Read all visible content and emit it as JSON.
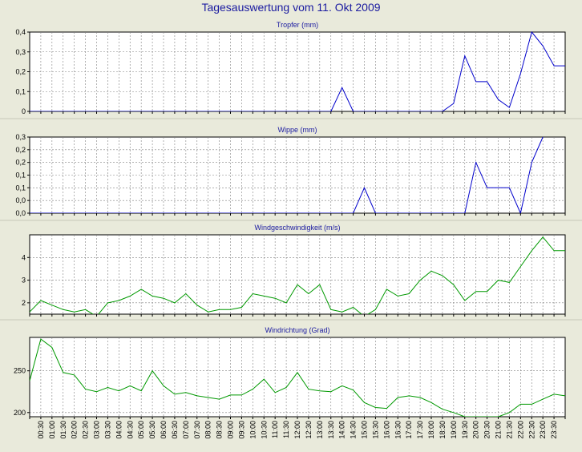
{
  "title": "Tagesauswertung vom 11. Okt 2009",
  "colors": {
    "background": "#e9eadb",
    "blue_series": "#0000cc",
    "green_series": "#009900",
    "grid": "#808080",
    "title_text": "#1a1aa0"
  },
  "x_tick_labels": [
    "00:30",
    "01:00",
    "01:30",
    "02:00",
    "02:30",
    "03:00",
    "03:30",
    "04:00",
    "04:30",
    "05:00",
    "05:30",
    "06:00",
    "06:30",
    "07:00",
    "07:30",
    "08:00",
    "08:30",
    "09:00",
    "09:30",
    "10:00",
    "10:30",
    "11:00",
    "11:30",
    "12:00",
    "12:30",
    "13:00",
    "13:30",
    "14:00",
    "14:30",
    "15:00",
    "15:30",
    "16:00",
    "16:30",
    "17:00",
    "17:30",
    "18:00",
    "18:30",
    "19:00",
    "19:30",
    "20:00",
    "20:30",
    "21:00",
    "21:30",
    "22:00",
    "22:30",
    "23:00",
    "23:30"
  ],
  "chart_data": [
    {
      "type": "line",
      "title": "Tropfer (mm)",
      "color": "#0000cc",
      "ylim": [
        0,
        0.4
      ],
      "y_tick_values": [
        0,
        0.1,
        0.2,
        0.3,
        0.4
      ],
      "y_tick_labels": [
        "0",
        "0,1",
        "0,2",
        "0,3",
        "0,4"
      ],
      "x": [
        0,
        0.5,
        1,
        1.5,
        2,
        2.5,
        3,
        3.5,
        4,
        4.5,
        5,
        5.5,
        6,
        6.5,
        7,
        7.5,
        8,
        8.5,
        9,
        9.5,
        10,
        10.5,
        11,
        11.5,
        12,
        12.5,
        13,
        13.5,
        14,
        14.5,
        15,
        15.5,
        16,
        16.5,
        17,
        17.5,
        18,
        18.5,
        19,
        19.5,
        20,
        20.5,
        21,
        21.5,
        22,
        22.5,
        23,
        23.5,
        24
      ],
      "values": [
        0,
        0,
        0,
        0,
        0,
        0,
        0,
        0,
        0,
        0,
        0,
        0,
        0,
        0,
        0,
        0,
        0,
        0,
        0,
        0,
        0,
        0,
        0,
        0,
        0,
        0,
        0,
        0,
        0.12,
        0,
        0,
        0,
        0,
        0,
        0,
        0,
        0,
        0,
        0.04,
        0.28,
        0.15,
        0.15,
        0.06,
        0.02,
        0.19,
        0.4,
        0.33,
        0.23,
        0.23
      ]
    },
    {
      "type": "line",
      "title": "Wippe (mm)",
      "color": "#0000cc",
      "ylim": [
        0,
        0.3
      ],
      "y_tick_values": [
        0,
        0.05,
        0.1,
        0.15,
        0.2,
        0.25,
        0.3
      ],
      "y_tick_labels": [
        "0,0",
        "0,0",
        "0,1",
        "0,1",
        "0,2",
        "0,2",
        "0,3"
      ],
      "x": [
        0,
        0.5,
        1,
        1.5,
        2,
        2.5,
        3,
        3.5,
        4,
        4.5,
        5,
        5.5,
        6,
        6.5,
        7,
        7.5,
        8,
        8.5,
        9,
        9.5,
        10,
        10.5,
        11,
        11.5,
        12,
        12.5,
        13,
        13.5,
        14,
        14.5,
        15,
        15.5,
        16,
        16.5,
        17,
        17.5,
        18,
        18.5,
        19,
        19.5,
        20,
        20.5,
        21,
        21.5,
        22,
        22.5,
        23
      ],
      "values": [
        0,
        0,
        0,
        0,
        0,
        0,
        0,
        0,
        0,
        0,
        0,
        0,
        0,
        0,
        0,
        0,
        0,
        0,
        0,
        0,
        0,
        0,
        0,
        0,
        0,
        0,
        0,
        0,
        0,
        0,
        0.1,
        0,
        0,
        0,
        0,
        0,
        0,
        0,
        0,
        0,
        0.2,
        0.1,
        0.1,
        0.1,
        0,
        0.2,
        0.3
      ]
    },
    {
      "type": "line",
      "title": "Windgeschwindigkeit (m/s)",
      "color": "#009900",
      "ylim": [
        1.5,
        5
      ],
      "y_tick_values": [
        2,
        3,
        4
      ],
      "y_tick_labels": [
        "2",
        "3",
        "4"
      ],
      "x": [
        0,
        0.5,
        1,
        1.5,
        2,
        2.5,
        3,
        3.5,
        4,
        4.5,
        5,
        5.5,
        6,
        6.5,
        7,
        7.5,
        8,
        8.5,
        9,
        9.5,
        10,
        10.5,
        11,
        11.5,
        12,
        12.5,
        13,
        13.5,
        14,
        14.5,
        15,
        15.5,
        16,
        16.5,
        17,
        17.5,
        18,
        18.5,
        19,
        19.5,
        20,
        20.5,
        21,
        21.5,
        22,
        22.5,
        23,
        23.5,
        24
      ],
      "values": [
        1.6,
        2.1,
        1.9,
        1.7,
        1.6,
        1.7,
        1.4,
        2.0,
        2.1,
        2.3,
        2.6,
        2.3,
        2.2,
        2.0,
        2.4,
        1.9,
        1.6,
        1.7,
        1.7,
        1.8,
        2.4,
        2.3,
        2.2,
        2.0,
        2.8,
        2.4,
        2.8,
        1.7,
        1.6,
        1.8,
        1.4,
        1.7,
        2.6,
        2.3,
        2.4,
        3.0,
        3.4,
        3.2,
        2.8,
        2.1,
        2.5,
        2.5,
        3.0,
        2.9,
        3.6,
        4.3,
        4.9,
        4.3,
        4.3
      ]
    },
    {
      "type": "line",
      "title": "Windrichtung (Grad)",
      "color": "#009900",
      "ylim": [
        195,
        290
      ],
      "y_tick_values": [
        200,
        250
      ],
      "y_tick_labels": [
        "200",
        "250"
      ],
      "x": [
        0,
        0.5,
        1,
        1.5,
        2,
        2.5,
        3,
        3.5,
        4,
        4.5,
        5,
        5.5,
        6,
        6.5,
        7,
        7.5,
        8,
        8.5,
        9,
        9.5,
        10,
        10.5,
        11,
        11.5,
        12,
        12.5,
        13,
        13.5,
        14,
        14.5,
        15,
        15.5,
        16,
        16.5,
        17,
        17.5,
        18,
        18.5,
        19,
        19.5,
        20,
        20.5,
        21,
        21.5,
        22,
        22.5,
        23,
        23.5,
        24
      ],
      "values": [
        238,
        288,
        278,
        248,
        245,
        228,
        225,
        230,
        226,
        232,
        226,
        250,
        232,
        222,
        224,
        220,
        218,
        216,
        221,
        221,
        228,
        240,
        224,
        230,
        248,
        228,
        226,
        225,
        232,
        227,
        212,
        206,
        205,
        218,
        220,
        218,
        212,
        204,
        200,
        195,
        195,
        195,
        195,
        200,
        210,
        210,
        216,
        222,
        220
      ]
    }
  ]
}
